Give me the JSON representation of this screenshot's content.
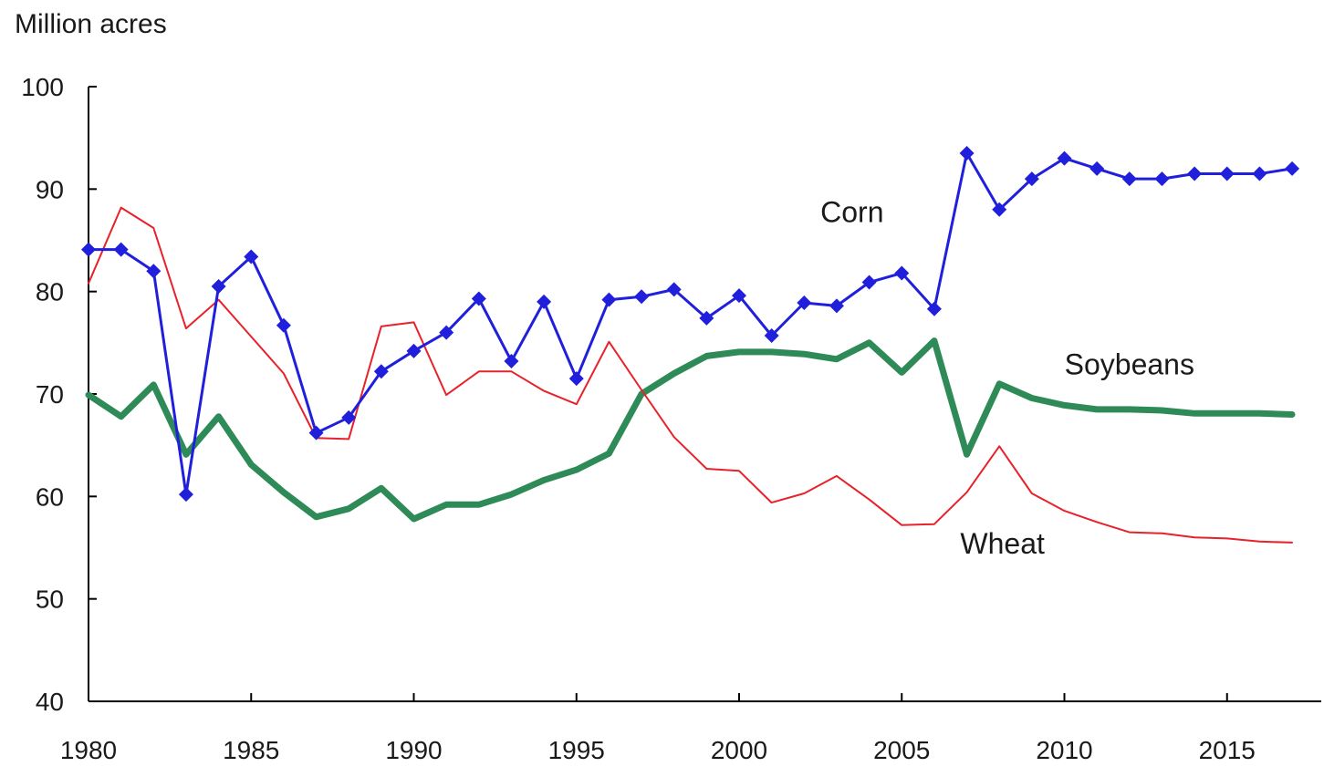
{
  "chart_data": {
    "type": "line",
    "ylabel": "Million acres",
    "xlim": [
      1980,
      2018
    ],
    "ylim": [
      40,
      100
    ],
    "yticks": [
      40,
      50,
      60,
      70,
      80,
      90,
      100
    ],
    "xticks": [
      1980,
      1985,
      1990,
      1995,
      2000,
      2005,
      2010,
      2015
    ],
    "grid": false,
    "legend": "direct labels on lines",
    "x": [
      1980,
      1981,
      1982,
      1983,
      1984,
      1985,
      1986,
      1987,
      1988,
      1989,
      1990,
      1991,
      1992,
      1993,
      1994,
      1995,
      1996,
      1997,
      1998,
      1999,
      2000,
      2001,
      2002,
      2003,
      2004,
      2005,
      2006,
      2007,
      2008,
      2009,
      2010,
      2011,
      2012,
      2013,
      2014,
      2015,
      2016,
      2017
    ],
    "series": [
      {
        "name": "Corn",
        "color": "#1f1fdc",
        "marker": "diamond",
        "values": [
          84.1,
          84.1,
          82.0,
          60.2,
          80.5,
          83.4,
          76.7,
          66.2,
          67.7,
          72.2,
          74.2,
          76.0,
          79.3,
          73.2,
          79.0,
          71.5,
          79.2,
          79.5,
          80.2,
          77.4,
          79.6,
          75.7,
          78.9,
          78.6,
          80.9,
          81.8,
          78.3,
          93.5,
          88.0,
          91.0,
          93.0,
          92.0,
          91.0,
          91.0,
          91.5,
          91.5,
          91.5,
          92.0
        ]
      },
      {
        "name": "Soybeans",
        "color": "#2e8b57",
        "marker": "none",
        "values": [
          69.9,
          67.8,
          70.9,
          64.1,
          67.8,
          63.1,
          60.4,
          58.0,
          58.8,
          60.8,
          57.8,
          59.2,
          59.2,
          60.2,
          61.6,
          62.6,
          64.2,
          70.0,
          72.0,
          73.7,
          74.1,
          74.1,
          73.9,
          73.4,
          75.0,
          72.1,
          75.2,
          64.1,
          71.0,
          69.6,
          68.9,
          68.5,
          68.5,
          68.4,
          68.1,
          68.1,
          68.1,
          68.0
        ]
      },
      {
        "name": "Wheat",
        "color": "#e8212a",
        "marker": "none",
        "values": [
          80.8,
          88.2,
          86.2,
          76.4,
          79.2,
          75.6,
          72.0,
          65.7,
          65.6,
          76.6,
          77.0,
          69.9,
          72.2,
          72.2,
          70.3,
          69.0,
          75.1,
          70.4,
          65.8,
          62.7,
          62.5,
          59.4,
          60.3,
          62.0,
          59.7,
          57.2,
          57.3,
          60.4,
          64.9,
          60.3,
          58.6,
          57.5,
          56.5,
          56.4,
          56.0,
          55.9,
          55.6,
          55.5
        ]
      }
    ]
  }
}
